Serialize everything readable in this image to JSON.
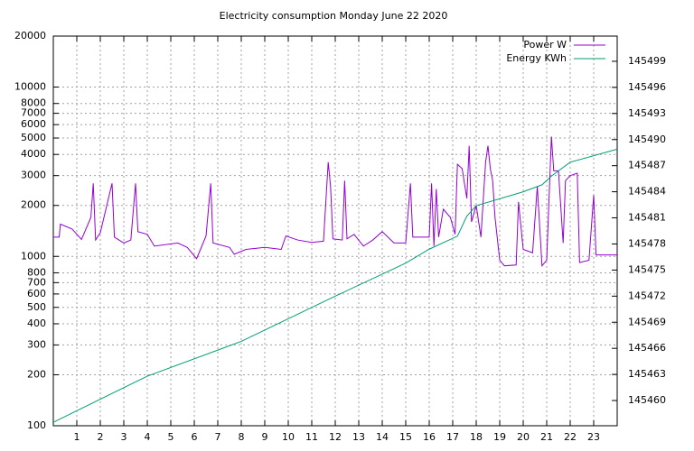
{
  "chart_data": {
    "type": "line",
    "title": "Electricity consumption Monday June 22 2020",
    "xlim": [
      0,
      24
    ],
    "xticks": [
      1,
      2,
      3,
      4,
      5,
      6,
      7,
      8,
      9,
      10,
      11,
      12,
      13,
      14,
      15,
      16,
      17,
      18,
      19,
      20,
      21,
      22,
      23
    ],
    "ylim": [
      100,
      20000
    ],
    "log_y": true,
    "yticks": [
      100,
      200,
      300,
      400,
      500,
      600,
      700,
      800,
      1000,
      2000,
      3000,
      4000,
      5000,
      6000,
      7000,
      8000,
      10000,
      20000
    ],
    "y2lim": [
      145457.1,
      145501.9
    ],
    "y2ticks": [
      145460,
      145463,
      145466,
      145469,
      145472,
      145475,
      145478,
      145481,
      145484,
      145487,
      145490,
      145493,
      145496,
      145499
    ],
    "grid": true,
    "legend": "top-right",
    "series": [
      {
        "name": "Power W",
        "color": "#9400d3",
        "axis": "y",
        "x": [
          0,
          0.25,
          0.3,
          0.8,
          1.2,
          1.6,
          1.7,
          1.8,
          2,
          2.5,
          2.6,
          3,
          3.3,
          3.5,
          3.6,
          4,
          4.3,
          5.3,
          5.7,
          6.1,
          6.5,
          6.7,
          6.8,
          7.5,
          7.7,
          8.2,
          9,
          9.7,
          9.9,
          10.4,
          11,
          11.5,
          11.7,
          11.8,
          11.9,
          12.3,
          12.4,
          12.5,
          12.8,
          13.2,
          13.6,
          14,
          14.5,
          15,
          15.2,
          15.3,
          16,
          16.1,
          16.2,
          16.3,
          16.4,
          16.6,
          16.9,
          17.1,
          17.2,
          17.4,
          17.6,
          17.7,
          17.8,
          18,
          18.2,
          18.4,
          18.5,
          18.6,
          18.7,
          18.8,
          19,
          19.2,
          19.7,
          19.8,
          20,
          20.4,
          20.6,
          20.8,
          21,
          21.2,
          21.3,
          21.5,
          21.7,
          21.8,
          22,
          22.3,
          22.4,
          22.8,
          23,
          23.1,
          24
        ],
        "values": [
          1300,
          1300,
          1550,
          1450,
          1260,
          1700,
          2700,
          1250,
          1380,
          2700,
          1300,
          1200,
          1250,
          2700,
          1400,
          1350,
          1150,
          1200,
          1130,
          970,
          1320,
          2700,
          1200,
          1130,
          1030,
          1100,
          1130,
          1100,
          1320,
          1250,
          1210,
          1230,
          3600,
          2600,
          1270,
          1250,
          2800,
          1270,
          1350,
          1150,
          1250,
          1400,
          1200,
          1200,
          2700,
          1300,
          1300,
          2700,
          1150,
          2500,
          1300,
          1900,
          1700,
          1350,
          3500,
          3300,
          2200,
          4500,
          1600,
          2000,
          1300,
          3600,
          4500,
          3300,
          2800,
          1700,
          950,
          880,
          890,
          2100,
          1100,
          1050,
          2600,
          880,
          950,
          5100,
          3200,
          3200,
          1200,
          2800,
          3000,
          3100,
          920,
          950,
          2300,
          1020,
          1020
        ]
      },
      {
        "name": "Energy KWh",
        "color": "#009e73",
        "axis": "y2",
        "x": [
          0,
          4,
          8,
          12,
          15,
          16,
          17.2,
          17.6,
          18,
          20,
          20.8,
          21.2,
          22,
          24
        ],
        "values": [
          145457.5,
          145462.8,
          145466.8,
          145472,
          145475.8,
          145477.4,
          145478.9,
          145481.2,
          145482.4,
          145484,
          145484.8,
          145485.8,
          145487.4,
          145488.9
        ]
      }
    ]
  }
}
